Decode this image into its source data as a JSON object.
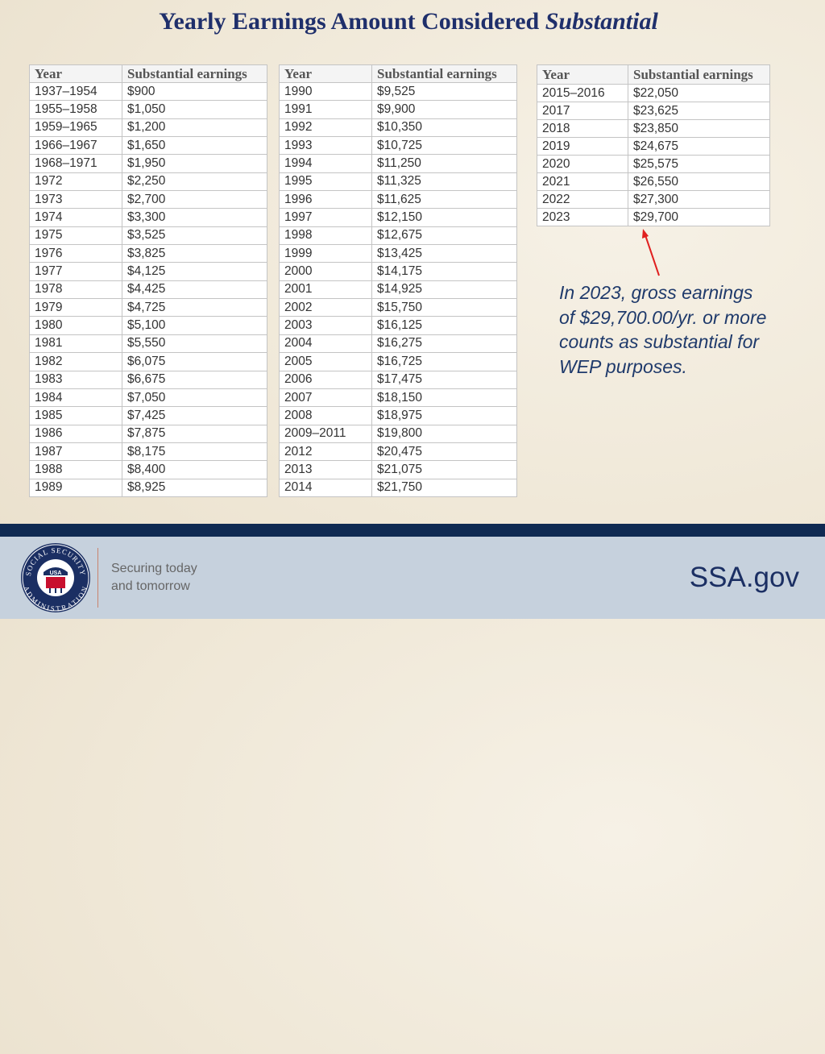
{
  "title": {
    "main": "Yearly Earnings Amount Considered",
    "emphasis": "Substantial"
  },
  "tables": [
    {
      "header": [
        "Year",
        "Substantial earnings"
      ],
      "rows": [
        [
          "1937–1954",
          "$900"
        ],
        [
          "1955–1958",
          "$1,050"
        ],
        [
          "1959–1965",
          "$1,200"
        ],
        [
          "1966–1967",
          "$1,650"
        ],
        [
          "1968–1971",
          "$1,950"
        ],
        [
          "1972",
          "$2,250"
        ],
        [
          "1973",
          "$2,700"
        ],
        [
          "1974",
          "$3,300"
        ],
        [
          "1975",
          "$3,525"
        ],
        [
          "1976",
          "$3,825"
        ],
        [
          "1977",
          "$4,125"
        ],
        [
          "1978",
          "$4,425"
        ],
        [
          "1979",
          "$4,725"
        ],
        [
          "1980",
          "$5,100"
        ],
        [
          "1981",
          "$5,550"
        ],
        [
          "1982",
          "$6,075"
        ],
        [
          "1983",
          "$6,675"
        ],
        [
          "1984",
          "$7,050"
        ],
        [
          "1985",
          "$7,425"
        ],
        [
          "1986",
          "$7,875"
        ],
        [
          "1987",
          "$8,175"
        ],
        [
          "1988",
          "$8,400"
        ],
        [
          "1989",
          "$8,925"
        ]
      ]
    },
    {
      "header": [
        "Year",
        "Substantial earnings"
      ],
      "rows": [
        [
          "1990",
          "$9,525"
        ],
        [
          "1991",
          "$9,900"
        ],
        [
          "1992",
          "$10,350"
        ],
        [
          "1993",
          "$10,725"
        ],
        [
          "1994",
          "$11,250"
        ],
        [
          "1995",
          "$11,325"
        ],
        [
          "1996",
          "$11,625"
        ],
        [
          "1997",
          "$12,150"
        ],
        [
          "1998",
          "$12,675"
        ],
        [
          "1999",
          "$13,425"
        ],
        [
          "2000",
          "$14,175"
        ],
        [
          "2001",
          "$14,925"
        ],
        [
          "2002",
          "$15,750"
        ],
        [
          "2003",
          "$16,125"
        ],
        [
          "2004",
          "$16,275"
        ],
        [
          "2005",
          "$16,725"
        ],
        [
          "2006",
          "$17,475"
        ],
        [
          "2007",
          "$18,150"
        ],
        [
          "2008",
          "$18,975"
        ],
        [
          "2009–2011",
          "$19,800"
        ],
        [
          "2012",
          "$20,475"
        ],
        [
          "2013",
          "$21,075"
        ],
        [
          "2014",
          "$21,750"
        ]
      ]
    },
    {
      "header": [
        "Year",
        "Substantial earnings"
      ],
      "rows": [
        [
          "2015–2016",
          "$22,050"
        ],
        [
          "2017",
          "$23,625"
        ],
        [
          "2018",
          "$23,850"
        ],
        [
          "2019",
          "$24,675"
        ],
        [
          "2020",
          "$25,575"
        ],
        [
          "2021",
          "$26,550"
        ],
        [
          "2022",
          "$27,300"
        ],
        [
          "2023",
          "$29,700"
        ]
      ]
    }
  ],
  "annotation": [
    "In 2023, gross earnings",
    "of $29,700.00/yr. or more",
    "counts as substantial for",
    "WEP purposes."
  ],
  "footer": {
    "logo": {
      "top": "SOCIAL SECURITY",
      "center": "USA",
      "bottom": "ADMINISTRATION"
    },
    "tagline": [
      "Securing today",
      "and tomorrow"
    ],
    "site": "SSA.gov"
  }
}
